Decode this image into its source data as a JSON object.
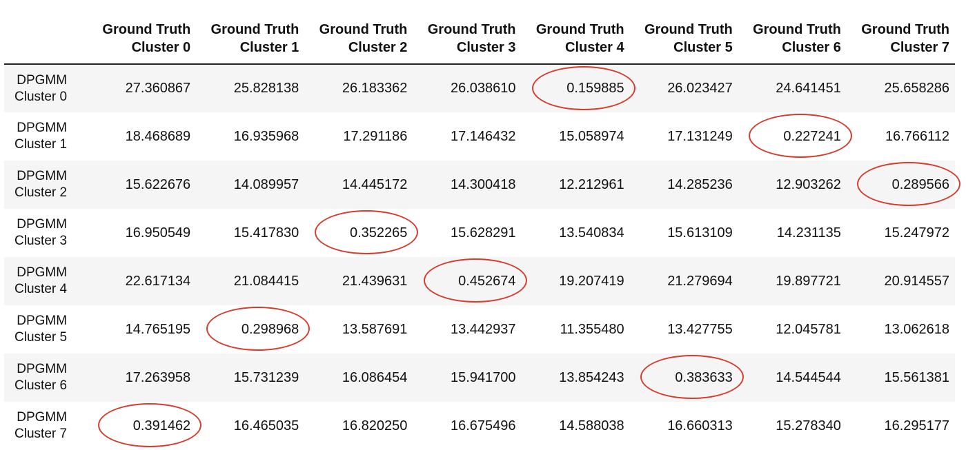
{
  "chart_data": {
    "type": "table",
    "columns": [
      [
        "Ground Truth",
        "Cluster 0"
      ],
      [
        "Ground Truth",
        "Cluster 1"
      ],
      [
        "Ground Truth",
        "Cluster 2"
      ],
      [
        "Ground Truth",
        "Cluster 3"
      ],
      [
        "Ground Truth",
        "Cluster 4"
      ],
      [
        "Ground Truth",
        "Cluster 5"
      ],
      [
        "Ground Truth",
        "Cluster 6"
      ],
      [
        "Ground Truth",
        "Cluster 7"
      ]
    ],
    "rows": [
      [
        "DPGMM",
        "Cluster 0"
      ],
      [
        "DPGMM",
        "Cluster 1"
      ],
      [
        "DPGMM",
        "Cluster 2"
      ],
      [
        "DPGMM",
        "Cluster 3"
      ],
      [
        "DPGMM",
        "Cluster 4"
      ],
      [
        "DPGMM",
        "Cluster 5"
      ],
      [
        "DPGMM",
        "Cluster 6"
      ],
      [
        "DPGMM",
        "Cluster 7"
      ]
    ],
    "values": [
      [
        "27.360867",
        "25.828138",
        "26.183362",
        "26.038610",
        "0.159885",
        "26.023427",
        "24.641451",
        "25.658286"
      ],
      [
        "18.468689",
        "16.935968",
        "17.291186",
        "17.146432",
        "15.058974",
        "17.131249",
        "0.227241",
        "16.766112"
      ],
      [
        "15.622676",
        "14.089957",
        "14.445172",
        "14.300418",
        "12.212961",
        "14.285236",
        "12.903262",
        "0.289566"
      ],
      [
        "16.950549",
        "15.417830",
        "0.352265",
        "15.628291",
        "13.540834",
        "15.613109",
        "14.231135",
        "15.247972"
      ],
      [
        "22.617134",
        "21.084415",
        "21.439631",
        "0.452674",
        "19.207419",
        "21.279694",
        "19.897721",
        "20.914557"
      ],
      [
        "14.765195",
        "0.298968",
        "13.587691",
        "13.442937",
        "11.355480",
        "13.427755",
        "12.045781",
        "13.062618"
      ],
      [
        "17.263958",
        "15.731239",
        "16.086454",
        "15.941700",
        "13.854243",
        "0.383633",
        "14.544544",
        "15.561381"
      ],
      [
        "0.391462",
        "16.465035",
        "16.820250",
        "16.675496",
        "14.588038",
        "16.660313",
        "15.278340",
        "16.295177"
      ]
    ],
    "circled_column_per_row": [
      4,
      6,
      7,
      2,
      3,
      1,
      5,
      0
    ],
    "highlight_color": "#d63b2b"
  }
}
